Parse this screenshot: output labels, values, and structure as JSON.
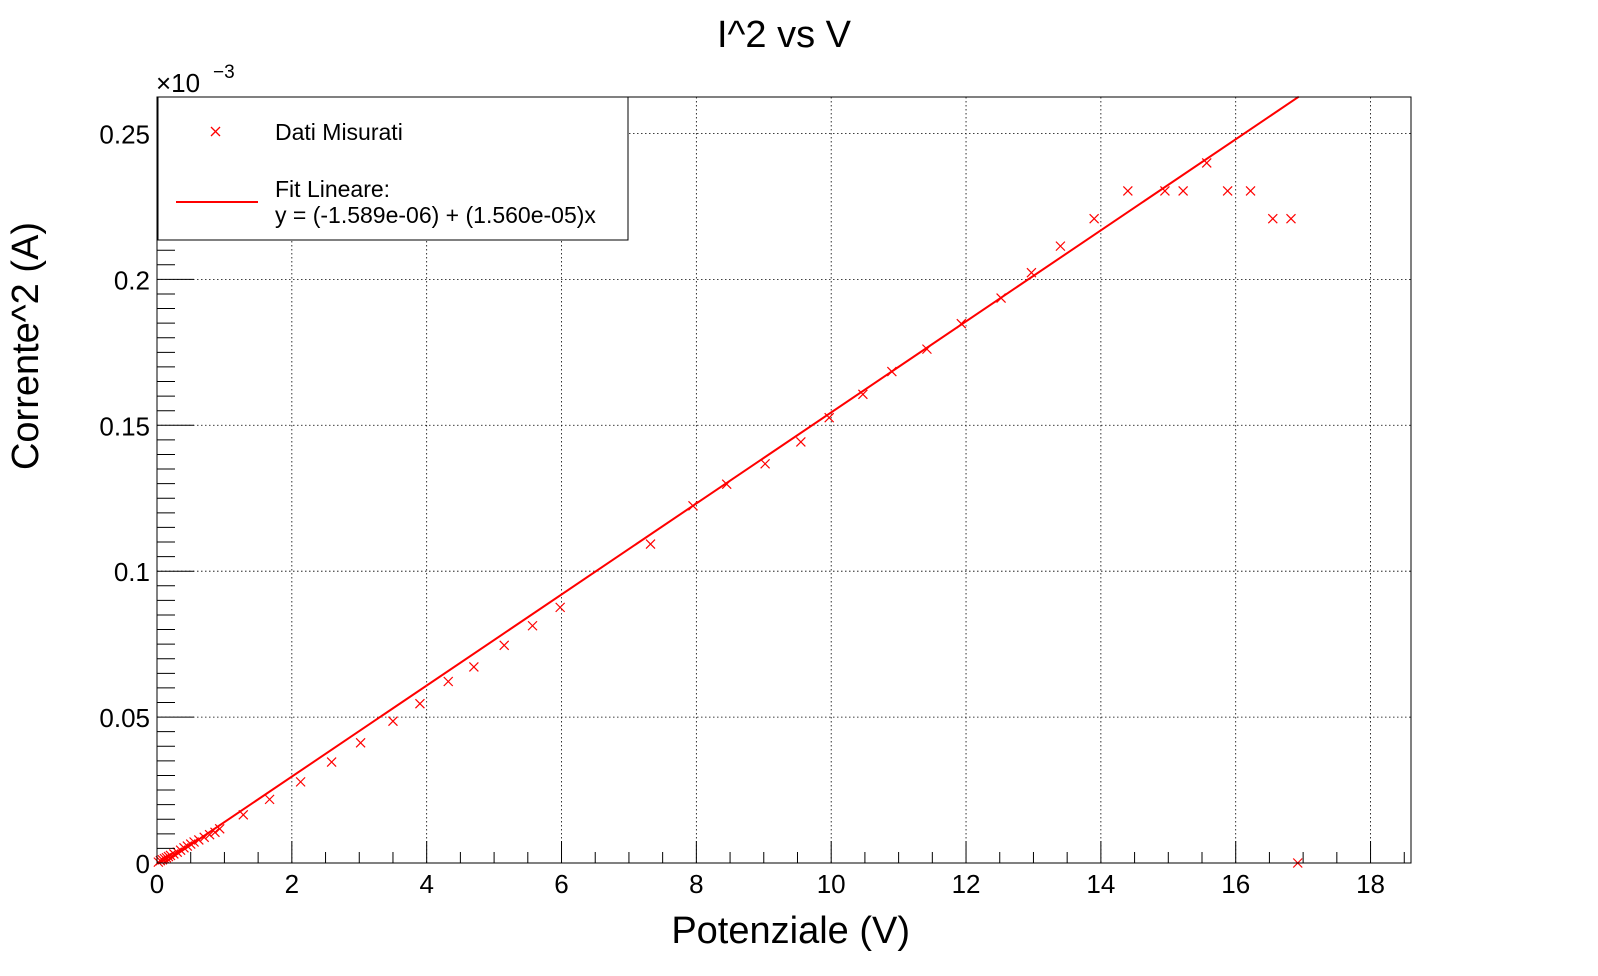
{
  "chart_data": {
    "type": "scatter",
    "title": "I^2 vs V",
    "xlabel": "Potenziale (V)",
    "ylabel": "Corrente^2 (A)",
    "y_multiplier_base": "×10",
    "y_multiplier_exp": "−3",
    "xlim": [
      0,
      18.6
    ],
    "ylim": [
      0,
      0.2625
    ],
    "x_ticks": [
      0,
      2,
      4,
      6,
      8,
      10,
      12,
      14,
      16,
      18
    ],
    "x_tick_labels": [
      "0",
      "2",
      "4",
      "6",
      "8",
      "10",
      "12",
      "14",
      "16",
      "18"
    ],
    "y_ticks": [
      0,
      0.05,
      0.1,
      0.15,
      0.2,
      0.25
    ],
    "y_tick_labels": [
      "0",
      "0.05",
      "0.1",
      "0.15",
      "0.2",
      "0.25"
    ],
    "grid": true,
    "legend_position": "top-left",
    "colors": {
      "series": "#ff0000",
      "axis": "#000000"
    },
    "series": [
      {
        "name": "Dati Misurati",
        "marker": "x",
        "x": [
          0.02,
          0.05,
          0.08,
          0.11,
          0.14,
          0.17,
          0.2,
          0.25,
          0.3,
          0.35,
          0.4,
          0.45,
          0.5,
          0.55,
          0.62,
          0.7,
          0.78,
          0.86,
          0.93,
          1.28,
          1.67,
          2.13,
          2.59,
          3.02,
          3.5,
          3.9,
          4.32,
          4.7,
          5.15,
          5.57,
          5.98,
          7.32,
          7.95,
          8.45,
          9.02,
          9.55,
          9.97,
          10.47,
          10.9,
          11.42,
          11.93,
          12.52,
          12.97,
          13.4,
          13.9,
          14.4,
          14.95,
          15.22,
          15.57,
          15.88,
          16.22,
          16.55,
          16.82,
          16.92
        ],
        "y": [
          0.0003,
          0.0008,
          0.0011,
          0.0015,
          0.0018,
          0.0022,
          0.0026,
          0.0031,
          0.0037,
          0.0044,
          0.0052,
          0.0058,
          0.0065,
          0.0072,
          0.0079,
          0.0088,
          0.0097,
          0.0105,
          0.0117,
          0.0165,
          0.0218,
          0.0278,
          0.0346,
          0.0412,
          0.0486,
          0.0546,
          0.0622,
          0.0672,
          0.0746,
          0.0813,
          0.0876,
          0.1093,
          0.1224,
          0.1298,
          0.1368,
          0.1443,
          0.1526,
          0.1606,
          0.1684,
          0.1761,
          0.1848,
          0.1936,
          0.2023,
          0.2114,
          0.2208,
          0.2303,
          0.2303,
          0.2303,
          0.2399,
          0.2303,
          0.2303,
          0.2208,
          0.2208,
          0.0
        ]
      },
      {
        "name": "Fit Lineare:",
        "name_line2": "y = (-1.589e-06) + (1.560e-05)x",
        "type": "line",
        "intercept": -0.001589,
        "slope": 0.0156,
        "x_range": [
          0,
          16.935
        ]
      }
    ]
  }
}
